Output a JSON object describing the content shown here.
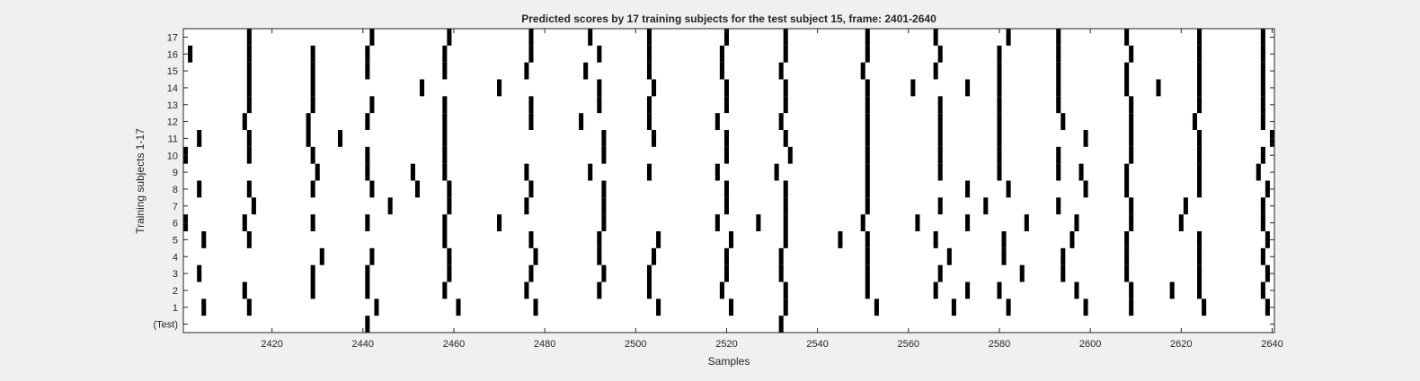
{
  "chart_data": {
    "type": "heatmap",
    "title": "Predicted scores by 17 training subjects for the test subject 15, frame: 2401-2640",
    "xlabel": "Samples",
    "ylabel": "Training subjects 1-17",
    "xlim": [
      2401,
      2640
    ],
    "xticks": [
      2420,
      2440,
      2460,
      2480,
      2500,
      2520,
      2540,
      2560,
      2580,
      2600,
      2620,
      2640
    ],
    "rows": [
      "(Test)",
      "1",
      "2",
      "3",
      "4",
      "5",
      "6",
      "7",
      "8",
      "9",
      "10",
      "11",
      "12",
      "13",
      "14",
      "15",
      "16",
      "17"
    ],
    "colors": {
      "background": "#ffffff",
      "mark": "#000000",
      "axis": "#262626",
      "figure": "#f0f0f0"
    },
    "mark_width_samples": 1,
    "marks": [
      {
        "row": "(Test)",
        "x": [
          2441,
          2532
        ]
      },
      {
        "row": "1",
        "x": [
          2405,
          2415,
          2443,
          2461,
          2478,
          2505,
          2521,
          2533,
          2553,
          2570,
          2582,
          2599,
          2609,
          2625,
          2639
        ]
      },
      {
        "row": "2",
        "x": [
          2414,
          2429,
          2441,
          2458,
          2476,
          2492,
          2503,
          2519,
          2533,
          2551,
          2566,
          2573,
          2580,
          2597,
          2609,
          2618,
          2624,
          2638
        ]
      },
      {
        "row": "3",
        "x": [
          2404,
          2429,
          2441,
          2459,
          2477,
          2493,
          2503,
          2520,
          2532,
          2551,
          2567,
          2585,
          2594,
          2608,
          2624,
          2639
        ]
      },
      {
        "row": "4",
        "x": [
          2431,
          2442,
          2459,
          2478,
          2492,
          2504,
          2520,
          2532,
          2551,
          2569,
          2581,
          2594,
          2608,
          2624,
          2638
        ]
      },
      {
        "row": "5",
        "x": [
          2405,
          2415,
          2458,
          2477,
          2492,
          2505,
          2521,
          2533,
          2545,
          2551,
          2566,
          2581,
          2596,
          2608,
          2624,
          2639
        ]
      },
      {
        "row": "6",
        "x": [
          2401,
          2414,
          2429,
          2441,
          2458,
          2470,
          2493,
          2518,
          2527,
          2533,
          2550,
          2562,
          2573,
          2586,
          2597,
          2609,
          2620,
          2638
        ]
      },
      {
        "row": "7",
        "x": [
          2416,
          2446,
          2459,
          2476,
          2493,
          2520,
          2533,
          2551,
          2567,
          2577,
          2593,
          2609,
          2621,
          2638
        ]
      },
      {
        "row": "8",
        "x": [
          2404,
          2415,
          2429,
          2442,
          2452,
          2459,
          2477,
          2493,
          2520,
          2533,
          2551,
          2573,
          2582,
          2599,
          2608,
          2624,
          2639
        ]
      },
      {
        "row": "9",
        "x": [
          2430,
          2441,
          2451,
          2458,
          2476,
          2490,
          2503,
          2518,
          2531,
          2551,
          2567,
          2580,
          2593,
          2598,
          2608,
          2624,
          2637
        ]
      },
      {
        "row": "10",
        "x": [
          2401,
          2415,
          2429,
          2441,
          2458,
          2493,
          2520,
          2534,
          2551,
          2567,
          2580,
          2593,
          2609,
          2624,
          2638
        ]
      },
      {
        "row": "11",
        "x": [
          2404,
          2415,
          2428,
          2435,
          2458,
          2493,
          2504,
          2520,
          2533,
          2551,
          2567,
          2580,
          2599,
          2609,
          2624,
          2640
        ]
      },
      {
        "row": "12",
        "x": [
          2414,
          2428,
          2441,
          2458,
          2477,
          2488,
          2503,
          2518,
          2532,
          2551,
          2567,
          2580,
          2594,
          2609,
          2623,
          2638
        ]
      },
      {
        "row": "13",
        "x": [
          2415,
          2429,
          2442,
          2458,
          2477,
          2492,
          2503,
          2520,
          2533,
          2551,
          2567,
          2580,
          2593,
          2609,
          2624,
          2638
        ]
      },
      {
        "row": "14",
        "x": [
          2415,
          2429,
          2453,
          2470,
          2492,
          2504,
          2520,
          2533,
          2551,
          2561,
          2573,
          2580,
          2593,
          2608,
          2615,
          2624,
          2638
        ]
      },
      {
        "row": "15",
        "x": [
          2415,
          2429,
          2441,
          2458,
          2476,
          2489,
          2503,
          2519,
          2532,
          2550,
          2566,
          2580,
          2593,
          2608,
          2624,
          2638
        ]
      },
      {
        "row": "16",
        "x": [
          2402,
          2415,
          2429,
          2441,
          2458,
          2477,
          2492,
          2503,
          2519,
          2533,
          2551,
          2567,
          2580,
          2593,
          2609,
          2624,
          2638
        ]
      },
      {
        "row": "17",
        "x": [
          2415,
          2442,
          2459,
          2477,
          2490,
          2503,
          2520,
          2533,
          2551,
          2566,
          2582,
          2593,
          2608,
          2624,
          2638
        ]
      }
    ]
  }
}
